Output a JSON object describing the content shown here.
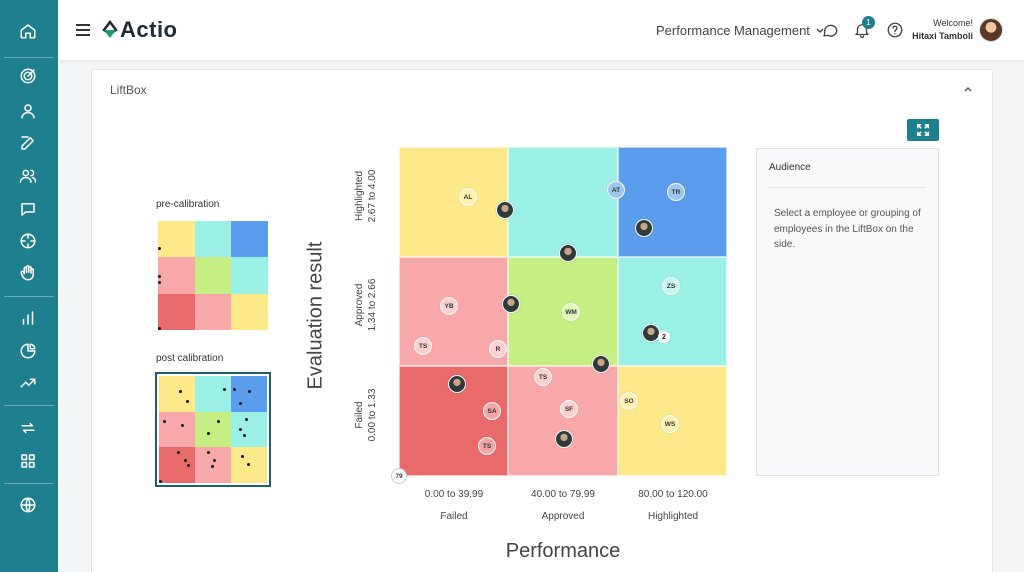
{
  "app": {
    "logo_text": "Actio",
    "module": "Performance Management",
    "welcome": "Welcome!",
    "user_name": "Hitaxi Tamboli",
    "notification_count": "1"
  },
  "sidebar": {
    "icons": [
      "home-icon",
      "target-icon",
      "user-icon",
      "edit-icon",
      "users-icon",
      "chat-icon",
      "crosshair-icon",
      "hand-icon",
      "bar-chart-icon",
      "pie-chart-icon",
      "trend-icon",
      "repeat-icon",
      "grid-icon",
      "globe-icon"
    ]
  },
  "card": {
    "title": "LiftBox",
    "collapse_icon": "chevron-up-icon",
    "expand_icon": "expand-icon"
  },
  "calibration": {
    "pre_label": "pre-calibration",
    "post_label": "post calibration"
  },
  "colors": {
    "yellow": "#fde98a",
    "cyan": "#9bf0e6",
    "blue": "#5b9ded",
    "pink": "#f8a8a8",
    "green": "#c5ef83",
    "red": "#e86a6a",
    "accent": "#1e7f8f"
  },
  "chart_data": {
    "type": "heatmap",
    "ylabel": "Evaluation result",
    "xlabel": "Performance",
    "rows": [
      {
        "name": "Highlighted",
        "range": "2.67 to 4.00"
      },
      {
        "name": "Approved",
        "range": "1.34 to 2.66"
      },
      {
        "name": "Failed",
        "range": "0.00 to 1.33"
      }
    ],
    "columns": [
      {
        "name": "Failed",
        "range": "0.00 to 39.99"
      },
      {
        "name": "Approved",
        "range": "40.00 to 79.99"
      },
      {
        "name": "Highlighted",
        "range": "80.00 to 120.00"
      }
    ],
    "cell_colors": [
      [
        "yellow",
        "cyan",
        "blue"
      ],
      [
        "pink",
        "green",
        "cyan"
      ],
      [
        "red",
        "pink",
        "yellow"
      ]
    ],
    "employees": [
      {
        "initials": "AL",
        "row": 0,
        "col": 0
      },
      {
        "initials": "AT",
        "row": 0,
        "col": 2
      },
      {
        "initials": "TR",
        "row": 0,
        "col": 2
      },
      {
        "initials": "YB",
        "row": 1,
        "col": 0
      },
      {
        "initials": "WM",
        "row": 1,
        "col": 1
      },
      {
        "initials": "ZS",
        "row": 1,
        "col": 2
      },
      {
        "initials": "TS",
        "row": 1,
        "col": 0
      },
      {
        "initials": "R",
        "row": 1,
        "col": 0
      },
      {
        "initials": "TS",
        "row": 2,
        "col": 1
      },
      {
        "initials": "SA",
        "row": 2,
        "col": 0
      },
      {
        "initials": "SF",
        "row": 2,
        "col": 1
      },
      {
        "initials": "SO",
        "row": 2,
        "col": 2
      },
      {
        "initials": "WS",
        "row": 2,
        "col": 2
      },
      {
        "initials": "TS",
        "row": 2,
        "col": 0
      }
    ],
    "group_count": "2",
    "corner_count": "79"
  },
  "audience": {
    "title": "Audience",
    "text": "Select a employee or grouping of employees in the LiftBox on the side."
  }
}
